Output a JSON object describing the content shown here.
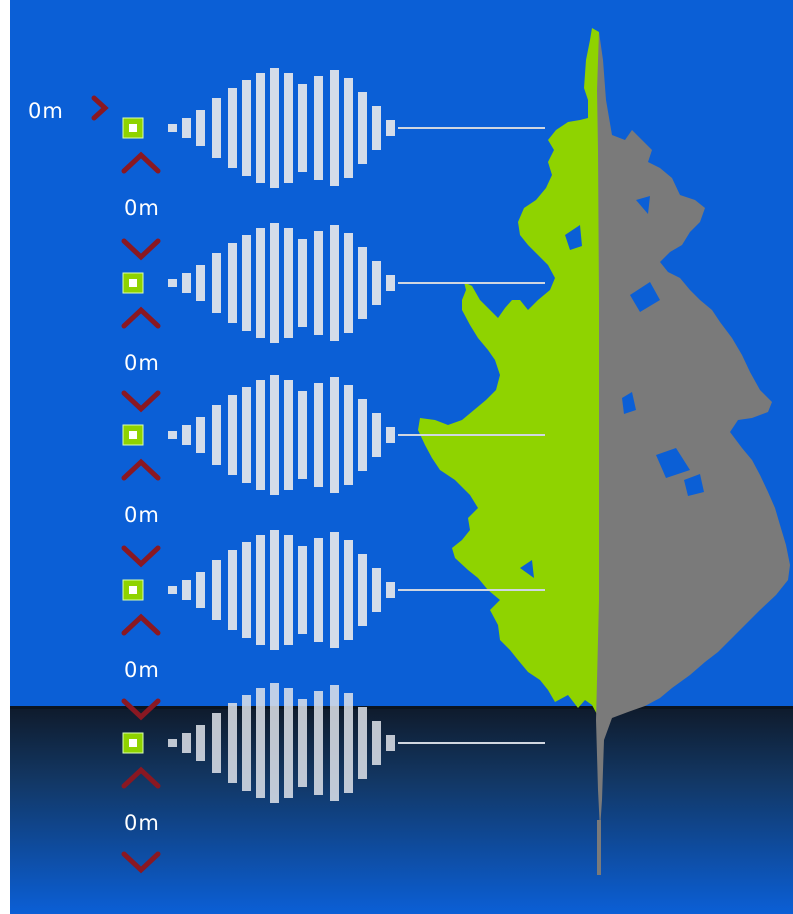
{
  "colors": {
    "background": "#0b5fd6",
    "water_top": "#0f1b2c",
    "water_bottom": "#0b5fd6",
    "green_profile": "#8fd300",
    "gray_profile": "#7a7a7a",
    "wave": "#dfe3ea",
    "sensor_fill": "#8fd300",
    "arrow": "#8a1822",
    "label": "#ffffff"
  },
  "top_label": "0m",
  "sensors": [
    {
      "label": "0m",
      "icon": "green-square-sensor-icon"
    },
    {
      "label": "0m",
      "icon": "green-square-sensor-icon"
    },
    {
      "label": "0m",
      "icon": "green-square-sensor-icon"
    },
    {
      "label": "0m",
      "icon": "green-square-sensor-icon"
    },
    {
      "label": "0m",
      "icon": "green-square-sensor-icon"
    }
  ],
  "icons": {
    "up": "chevron-up-icon",
    "down": "chevron-down-icon",
    "right": "chevron-right-icon"
  }
}
